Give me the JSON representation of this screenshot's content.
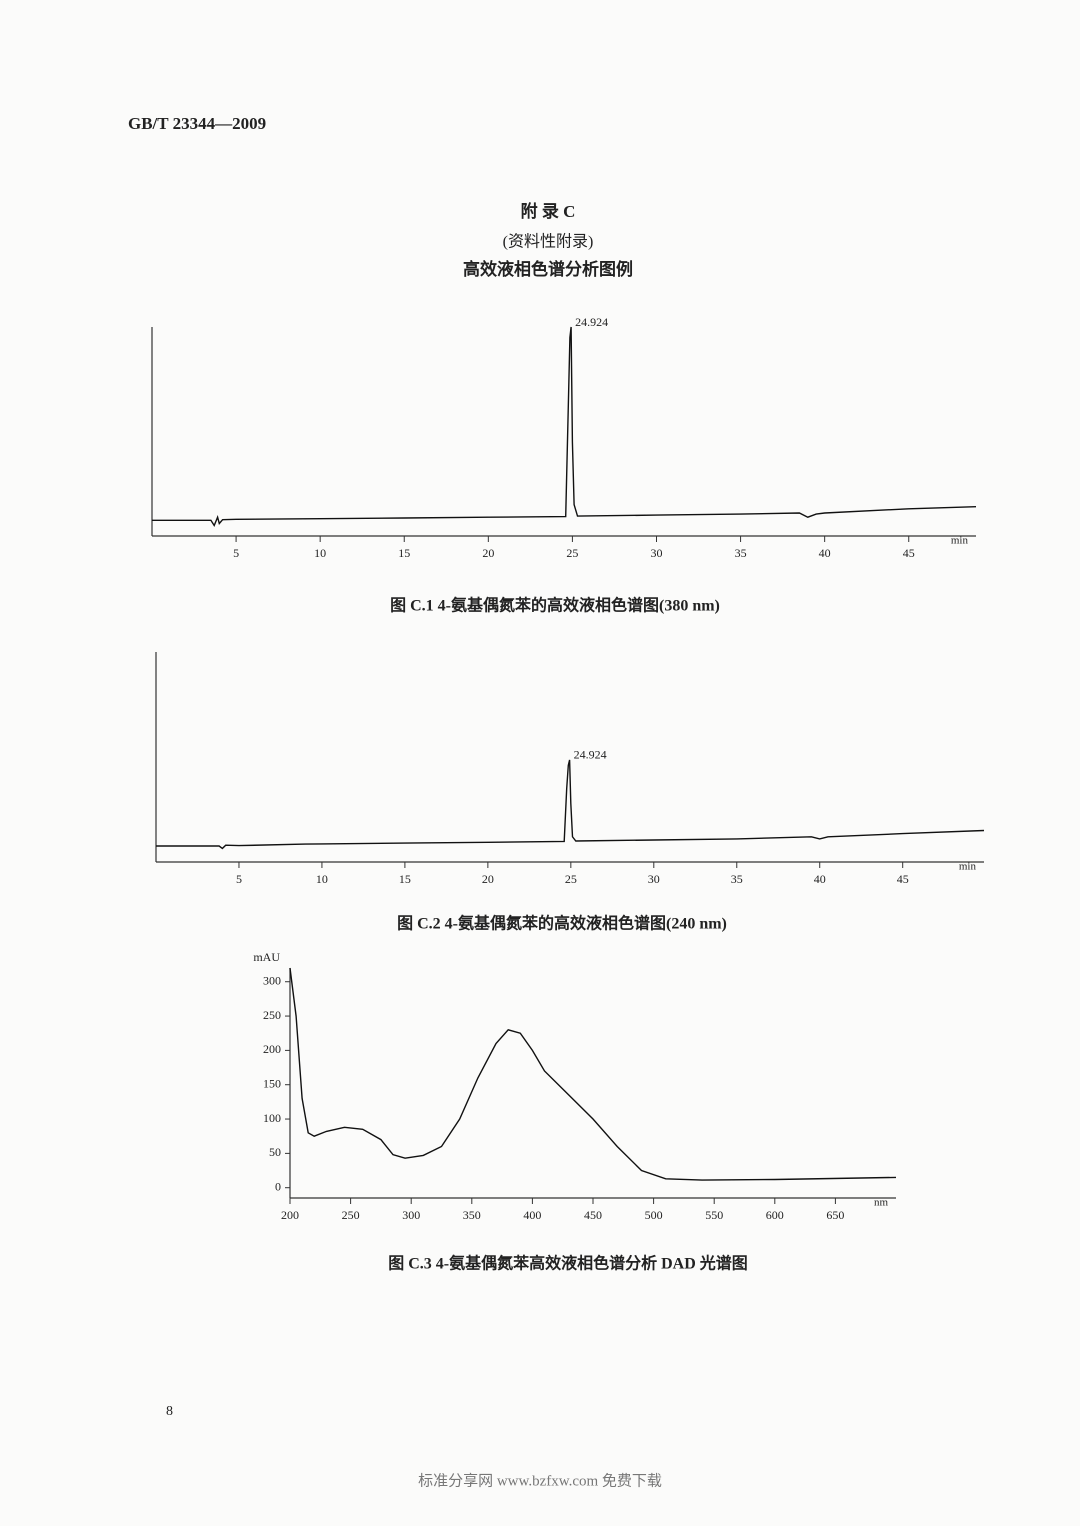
{
  "header": {
    "standard": "GB/T 23344—2009"
  },
  "appendix": {
    "title": "附 录 C",
    "note": "(资料性附录)",
    "subtitle": "高效液相色谱分析图例"
  },
  "chart_data": [
    {
      "type": "line",
      "caption": "图 C.1  4-氨基偶氮苯的高效液相色谱图(380 nm)",
      "x_label": "min",
      "color": "#111111",
      "xlim": [
        0,
        49
      ],
      "ylim": [
        0,
        100
      ],
      "xticks": [
        5,
        10,
        15,
        20,
        25,
        30,
        35,
        40,
        45
      ],
      "x": [
        0,
        3.5,
        3.7,
        3.9,
        4.0,
        4.2,
        5,
        10,
        15,
        20,
        24.6,
        24.75,
        24.85,
        24.924,
        25.0,
        25.1,
        25.3,
        30,
        35,
        38.5,
        39,
        39.5,
        40,
        45,
        49
      ],
      "values": [
        7.5,
        7.5,
        5,
        9,
        6,
        7.8,
        8,
        8.3,
        8.6,
        9,
        9.3,
        60,
        95,
        100,
        45,
        15,
        9.5,
        10,
        10.5,
        11,
        9,
        10.5,
        11,
        13,
        14
      ],
      "annotations": [
        {
          "x": 24.924,
          "text": "24.924"
        }
      ]
    },
    {
      "type": "line",
      "caption": "图 C.2  4-氨基偶氮苯的高效液相色谱图(240 nm)",
      "x_label": "min",
      "color": "#111111",
      "xlim": [
        0,
        49.9
      ],
      "ylim": [
        0,
        100
      ],
      "xticks": [
        5,
        10,
        15,
        20,
        25,
        30,
        35,
        40,
        45
      ],
      "x": [
        0,
        3.8,
        4.0,
        4.2,
        5,
        9,
        10,
        15,
        20,
        24.6,
        24.75,
        24.85,
        24.924,
        25.0,
        25.1,
        25.3,
        30,
        35,
        39.5,
        40,
        40.5,
        45,
        49.9
      ],
      "values": [
        7.6,
        7.6,
        6.5,
        8,
        7.8,
        8.5,
        8.6,
        9,
        9.4,
        9.8,
        35,
        46,
        48.6,
        28,
        12,
        10,
        10.5,
        11,
        12,
        11,
        12,
        13.5,
        15
      ],
      "annotations": [
        {
          "x": 24.924,
          "text": "24.924"
        }
      ]
    },
    {
      "type": "line",
      "caption": "图 C.3  4-氨基偶氮苯高效液相色谱分析 DAD 光谱图",
      "x_label": "nm",
      "y_label": "mAU",
      "color": "#111111",
      "xlim": [
        200,
        700
      ],
      "ylim": [
        -15,
        320
      ],
      "xticks": [
        200,
        250,
        300,
        350,
        400,
        450,
        500,
        550,
        600,
        650
      ],
      "yticks": [
        0,
        50,
        100,
        150,
        200,
        250,
        300
      ],
      "x": [
        200,
        205,
        210,
        215,
        220,
        230,
        245,
        260,
        275,
        285,
        295,
        310,
        325,
        340,
        355,
        370,
        380,
        390,
        400,
        410,
        430,
        450,
        470,
        490,
        510,
        540,
        600,
        700
      ],
      "values": [
        320,
        250,
        130,
        80,
        75,
        82,
        88,
        85,
        70,
        48,
        43,
        47,
        60,
        100,
        160,
        210,
        230,
        225,
        200,
        170,
        135,
        100,
        60,
        25,
        13,
        11,
        12,
        15
      ]
    }
  ],
  "page_number": "8",
  "footer": "标准分享网 www.bzfxw.com 免费下载"
}
